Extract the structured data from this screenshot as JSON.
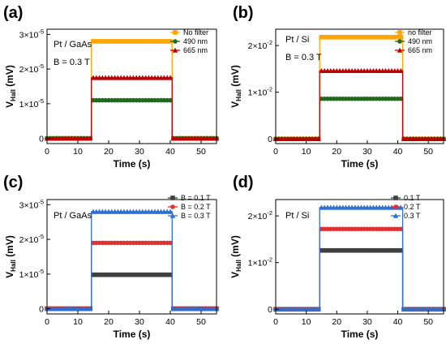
{
  "chart_data": [
    {
      "panel_label": "(a)",
      "type": "line",
      "xlabel": "Time (s)",
      "ylabel": "V_Hall (mV)",
      "xlim": [
        0,
        55
      ],
      "xticks": [
        0,
        10,
        20,
        30,
        40,
        50
      ],
      "ylim": [
        -0.15,
        3.15
      ],
      "yticks": [
        {
          "v": 0,
          "t": "0"
        },
        {
          "v": 1,
          "t": "1×10"
        },
        {
          "v": 2,
          "t": "2×10"
        },
        {
          "v": 3,
          "t": "3×10"
        }
      ],
      "ytick_exp": "-5",
      "annotations": [
        "Pt / GaAs",
        "B = 0.3 T"
      ],
      "legend": "top-right",
      "series": [
        {
          "name": "No filter",
          "color": "#ffa500",
          "marker": "square",
          "on": 2.8
        },
        {
          "name": "490 nm",
          "color": "#1e6b1e",
          "marker": "circle",
          "on": 1.1
        },
        {
          "name": "665 nm",
          "color": "#c00000",
          "marker": "triangle",
          "on": 1.75
        }
      ],
      "step": {
        "start": 15,
        "end": 40,
        "step_interval": 1,
        "t_max": 55
      }
    },
    {
      "panel_label": "(b)",
      "type": "line",
      "xlabel": "Time (s)",
      "ylabel": "V_Hall (mV)",
      "xlim": [
        0,
        55
      ],
      "xticks": [
        0,
        10,
        20,
        30,
        40,
        50
      ],
      "ylim": [
        -0.1,
        2.35
      ],
      "yticks": [
        {
          "v": 0,
          "t": "0"
        },
        {
          "v": 1,
          "t": "1×10"
        },
        {
          "v": 2,
          "t": "2×10"
        }
      ],
      "ytick_exp": "-2",
      "annotations": [
        "Pt / Si",
        "B = 0.3 T"
      ],
      "legend": "top-right",
      "series": [
        {
          "name": "no filter",
          "color": "#ffa500",
          "marker": "square",
          "on": 2.18
        },
        {
          "name": "490 nm",
          "color": "#1e6b1e",
          "marker": "circle",
          "on": 0.86
        },
        {
          "name": "665 nm",
          "color": "#c00000",
          "marker": "triangle",
          "on": 1.46
        }
      ],
      "step": {
        "start": 15,
        "end": 41,
        "step_interval": 1,
        "t_max": 55
      }
    },
    {
      "panel_label": "(c)",
      "type": "line",
      "xlabel": "Time (s)",
      "ylabel": "V_Hall (mV)",
      "xlim": [
        0,
        55
      ],
      "xticks": [
        0,
        10,
        20,
        30,
        40,
        50
      ],
      "ylim": [
        -0.15,
        3.15
      ],
      "yticks": [
        {
          "v": 0,
          "t": "0"
        },
        {
          "v": 1,
          "t": "1×10"
        },
        {
          "v": 2,
          "t": "2×10"
        },
        {
          "v": 3,
          "t": "3×10"
        }
      ],
      "ytick_exp": "-5",
      "annotations": [
        "Pt / GaAs"
      ],
      "legend": "top-right",
      "series": [
        {
          "name": "B = 0.1 T",
          "color": "#404040",
          "marker": "square",
          "on": 0.98
        },
        {
          "name": "B = 0.2 T",
          "color": "#e03030",
          "marker": "circle",
          "on": 1.9
        },
        {
          "name": "B = 0.3 T",
          "color": "#2f6fd0",
          "marker": "triangle",
          "on": 2.8
        }
      ],
      "step": {
        "start": 15,
        "end": 40,
        "step_interval": 1,
        "t_max": 55
      }
    },
    {
      "panel_label": "(d)",
      "type": "line",
      "xlabel": "Time (s)",
      "ylabel": "V_Hall (mV)",
      "xlim": [
        0,
        55
      ],
      "xticks": [
        0,
        10,
        20,
        30,
        40,
        50
      ],
      "ylim": [
        -0.1,
        2.35
      ],
      "yticks": [
        {
          "v": 0,
          "t": "0"
        },
        {
          "v": 1,
          "t": "1×10"
        },
        {
          "v": 2,
          "t": "2×10"
        }
      ],
      "ytick_exp": "-2",
      "annotations": [
        "Pt / Si"
      ],
      "legend": "top-right",
      "series": [
        {
          "name": "0.1 T",
          "color": "#404040",
          "marker": "square",
          "on": 1.26
        },
        {
          "name": "0.2 T",
          "color": "#e03030",
          "marker": "circle",
          "on": 1.72
        },
        {
          "name": "0.3 T",
          "color": "#2f6fd0",
          "marker": "triangle",
          "on": 2.18
        }
      ],
      "step": {
        "start": 15,
        "end": 41,
        "step_interval": 1,
        "t_max": 55
      }
    }
  ]
}
